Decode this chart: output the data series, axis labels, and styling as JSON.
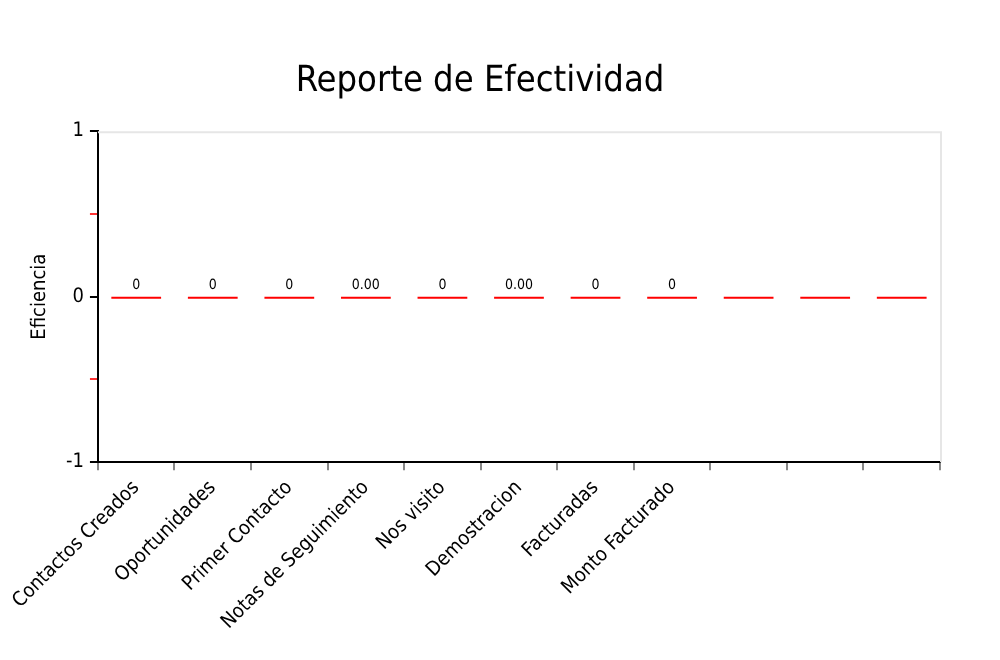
{
  "chart_data": {
    "type": "bar",
    "title": "Reporte de Efectividad",
    "ylabel": "Eficiencia",
    "categories": [
      "Contactos Creados",
      "Oportunidades",
      "Primer Contacto",
      "Notas de Seguimiento",
      "Nos visito",
      "Demostracion",
      "Facturadas",
      "Monto Facturado",
      null,
      null,
      null
    ],
    "values": [
      0,
      0,
      0,
      0,
      0,
      0,
      0,
      0,
      0,
      0,
      0
    ],
    "value_labels": [
      "0",
      "0",
      "0",
      "0.00",
      "0",
      "0.00",
      "0",
      "0",
      null,
      null,
      null
    ],
    "color": "#ff0000",
    "ylim": [
      -1,
      1
    ],
    "yticks": [
      -1,
      {
        "value": -0.5,
        "label": null
      },
      0,
      {
        "value": 0.5,
        "label": null
      },
      1
    ],
    "grid": false,
    "legend": false
  }
}
